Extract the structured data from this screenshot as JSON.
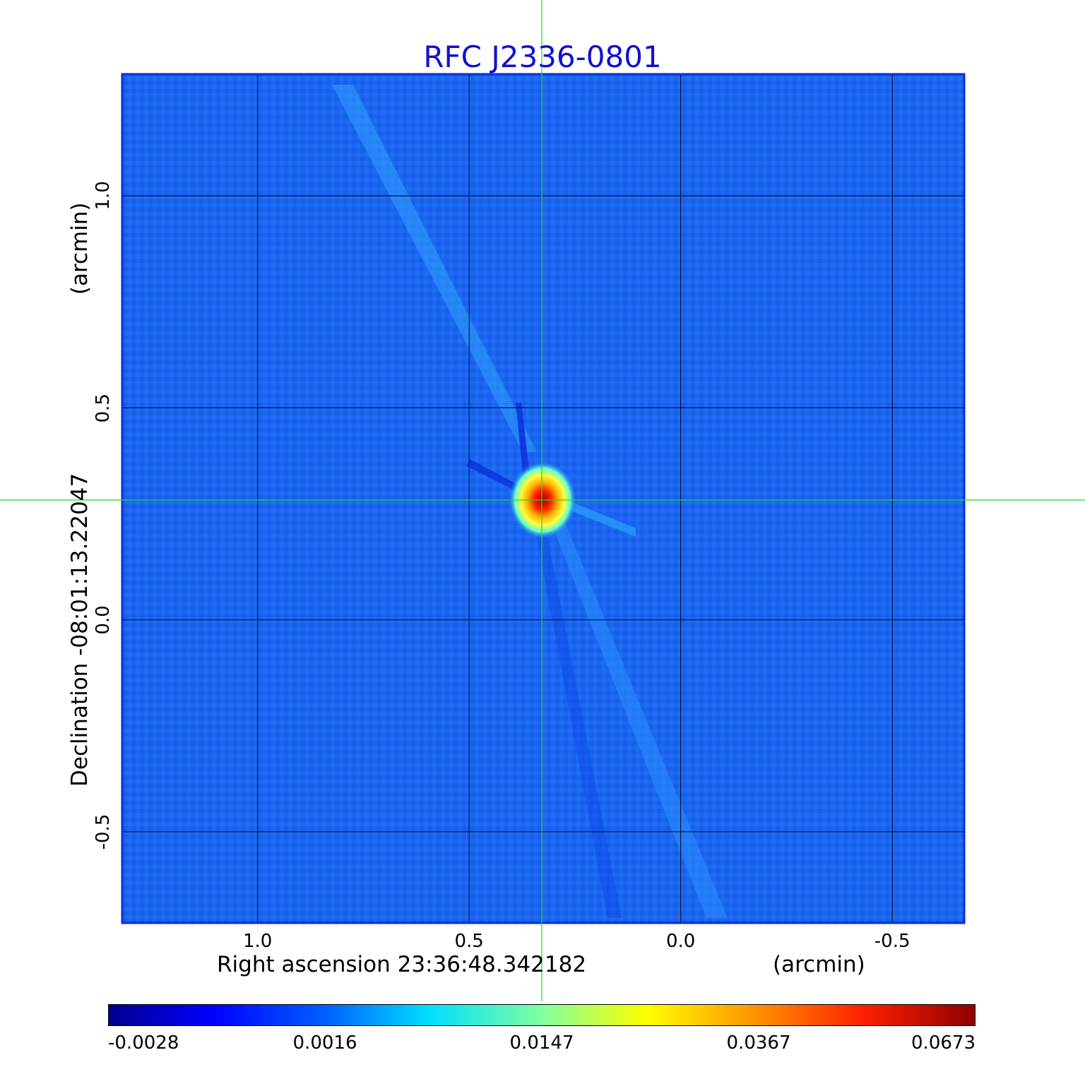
{
  "chart_data": {
    "type": "heatmap",
    "title": "RFC J2336-0801",
    "xlabel": "Right ascension  23:36:48.342182",
    "xunit": "(arcmin)",
    "ylabel": "Declination  -08:01:13.22047",
    "yunit": "(arcmin)",
    "x_ticks": [
      "1.0",
      "0.5",
      "0.0",
      "-0.5"
    ],
    "y_ticks": [
      "1.0",
      "0.5",
      "0.0",
      "-0.5"
    ],
    "x_tick_values": [
      1.0,
      0.5,
      0.0,
      -0.5
    ],
    "y_tick_values": [
      1.0,
      0.5,
      0.0,
      -0.5
    ],
    "xlim": [
      1.32,
      -0.67
    ],
    "ylim": [
      -0.715,
      1.287
    ],
    "grid": true,
    "crosshair": {
      "x": 0.333,
      "y": 0.283
    },
    "source_peak": {
      "x": 0.333,
      "y": 0.283,
      "value": 0.0673
    },
    "colorbar": {
      "colormap": "jet",
      "tick_labels": [
        "-0.0028",
        "0.0016",
        "0.0147",
        "0.0367",
        "0.0673"
      ],
      "tick_values": [
        -0.0028,
        0.0016,
        0.0147,
        0.0367,
        0.0673
      ]
    }
  },
  "colors": {
    "title": "#1010d0",
    "background_map": "#1a63f0",
    "grid": "#000000",
    "crosshair": "#22dd22",
    "frame": "#0a2fd8"
  }
}
